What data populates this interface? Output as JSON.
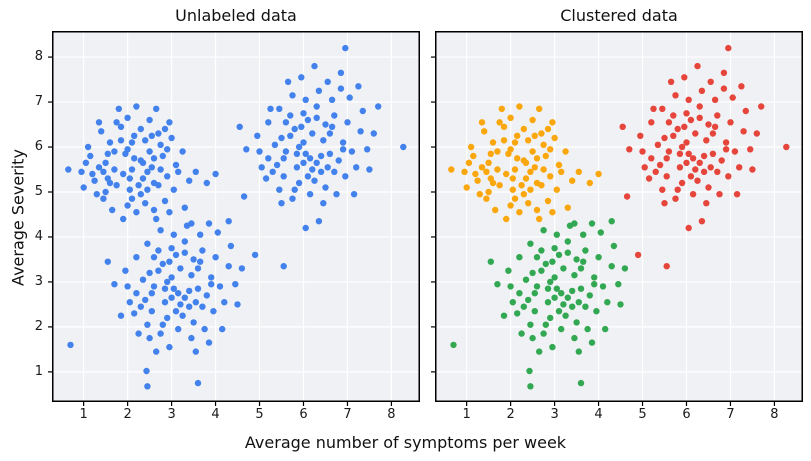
{
  "style": {
    "figure_bg": "#ffffff",
    "plot_bg": "#f0f1f4",
    "grid_color": "#ffffff",
    "spine_color": "#000000",
    "tick_color": "#000000",
    "text_color": "#1a1a1a",
    "unlabeled_point_color": "#4382EC",
    "cluster_point_colors": [
      "#FAA70E",
      "#33A852",
      "#E6453C"
    ]
  },
  "chart_data": {
    "type": "scatter",
    "xlabel": "Average number of symptoms per week",
    "ylabel": "Average Severity",
    "xlim": [
      0.28,
      8.65
    ],
    "ylim": [
      0.33,
      8.58
    ],
    "x_ticks": [
      1,
      2,
      3,
      4,
      5,
      6,
      7,
      8
    ],
    "y_ticks": [
      1,
      2,
      3,
      4,
      5,
      6,
      7,
      8
    ],
    "grid": true,
    "legend": "none",
    "note": "Both panels plot the same 260 points; left panel in a single blue, right panel colored by cluster index.",
    "panels": [
      {
        "title": "Unlabeled data",
        "coloring": "single",
        "color": "#4382EC",
        "y_tick_labels_shown": true
      },
      {
        "title": "Clustered data",
        "coloring": "by_cluster",
        "y_tick_labels_shown": false
      }
    ],
    "clusters": [
      {
        "name": "cluster-yellow",
        "color": "#FAA70E",
        "center": [
          2.2,
          5.5
        ],
        "count": 83
      },
      {
        "name": "cluster-green",
        "color": "#33A852",
        "center": [
          3.1,
          2.9
        ],
        "count": 87
      },
      {
        "name": "cluster-red",
        "color": "#E6453C",
        "center": [
          6.1,
          6.0
        ],
        "count": 90
      }
    ],
    "points_format": "[x, y, cluster_index]",
    "points": [
      [
        1.9,
        5.4,
        0
      ],
      [
        2.3,
        5.7,
        0
      ],
      [
        2.6,
        5.2,
        0
      ],
      [
        1.7,
        5.9,
        0
      ],
      [
        2.1,
        6.1,
        0
      ],
      [
        2.45,
        5.45,
        0
      ],
      [
        1.55,
        5.3,
        0
      ],
      [
        2.8,
        5.8,
        0
      ],
      [
        2.05,
        5.05,
        0
      ],
      [
        1.35,
        5.55,
        0
      ],
      [
        2.3,
        4.95,
        0
      ],
      [
        2.7,
        6.3,
        0
      ],
      [
        1.85,
        6.45,
        0
      ],
      [
        2.5,
        6.6,
        0
      ],
      [
        1.6,
        6.1,
        0
      ],
      [
        2.15,
        5.75,
        0
      ],
      [
        2.9,
        5.35,
        0
      ],
      [
        3.1,
        5.6,
        0
      ],
      [
        1.45,
        4.85,
        0
      ],
      [
        2.0,
        4.7,
        0
      ],
      [
        2.35,
        5.3,
        0
      ],
      [
        2.6,
        4.6,
        0
      ],
      [
        1.75,
        5.15,
        0
      ],
      [
        1.2,
        5.4,
        0
      ],
      [
        0.95,
        5.45,
        0
      ],
      [
        0.65,
        5.5,
        0
      ],
      [
        1.1,
        6.0,
        0
      ],
      [
        1.5,
        5.65,
        0
      ],
      [
        2.2,
        6.9,
        0
      ],
      [
        2.4,
        6.15,
        0
      ],
      [
        2.75,
        6.05,
        0
      ],
      [
        3.0,
        6.2,
        0
      ],
      [
        3.25,
        5.9,
        0
      ],
      [
        2.85,
        4.8,
        0
      ],
      [
        3.4,
        5.25,
        0
      ],
      [
        2.1,
        5.5,
        0
      ],
      [
        1.95,
        5.85,
        0
      ],
      [
        2.55,
        5.55,
        0
      ],
      [
        2.3,
        6.4,
        0
      ],
      [
        1.65,
        4.6,
        0
      ],
      [
        1.3,
        4.95,
        0
      ],
      [
        1.0,
        5.1,
        0
      ],
      [
        2.0,
        6.65,
        0
      ],
      [
        1.8,
        6.85,
        0
      ],
      [
        2.65,
        6.85,
        0
      ],
      [
        2.95,
        6.55,
        0
      ],
      [
        1.4,
        6.35,
        0
      ],
      [
        1.15,
        5.8,
        0
      ],
      [
        2.45,
        5.05,
        0
      ],
      [
        2.2,
        4.55,
        0
      ],
      [
        1.9,
        4.4,
        0
      ],
      [
        2.75,
        5.5,
        0
      ],
      [
        3.05,
        5.05,
        0
      ],
      [
        3.3,
        4.65,
        0
      ],
      [
        3.55,
        5.45,
        0
      ],
      [
        3.8,
        5.2,
        0
      ],
      [
        2.5,
        5.9,
        0
      ],
      [
        2.05,
        5.3,
        0
      ],
      [
        1.7,
        5.5,
        0
      ],
      [
        1.5,
        5.0,
        0
      ],
      [
        2.35,
        5.65,
        0
      ],
      [
        2.6,
        5.75,
        0
      ],
      [
        2.9,
        5.95,
        0
      ],
      [
        2.15,
        6.25,
        0
      ],
      [
        1.85,
        6.15,
        0
      ],
      [
        1.55,
        5.85,
        0
      ],
      [
        1.25,
        5.25,
        0
      ],
      [
        2.7,
        5.15,
        0
      ],
      [
        3.15,
        5.45,
        0
      ],
      [
        2.4,
        4.75,
        0
      ],
      [
        2.0,
        5.95,
        0
      ],
      [
        1.75,
        6.55,
        0
      ],
      [
        2.55,
        6.25,
        0
      ],
      [
        2.85,
        6.4,
        0
      ],
      [
        2.25,
        5.15,
        0
      ],
      [
        1.45,
        5.45,
        0
      ],
      [
        1.05,
        5.65,
        0
      ],
      [
        2.1,
        4.85,
        0
      ],
      [
        2.95,
        4.55,
        0
      ],
      [
        4.0,
        5.4,
        0
      ],
      [
        2.65,
        4.4,
        0
      ],
      [
        1.35,
        6.55,
        0
      ],
      [
        1.6,
        5.2,
        0
      ],
      [
        3.0,
        3.1,
        1
      ],
      [
        3.4,
        2.8,
        1
      ],
      [
        2.8,
        3.4,
        1
      ],
      [
        3.6,
        3.3,
        1
      ],
      [
        3.2,
        2.5,
        1
      ],
      [
        2.6,
        2.9,
        1
      ],
      [
        3.8,
        2.7,
        1
      ],
      [
        3.1,
        3.6,
        1
      ],
      [
        2.9,
        2.2,
        1
      ],
      [
        3.5,
        2.1,
        1
      ],
      [
        2.4,
        2.6,
        1
      ],
      [
        3.3,
        3.9,
        1
      ],
      [
        3.7,
        3.7,
        1
      ],
      [
        2.7,
        3.7,
        1
      ],
      [
        2.5,
        3.2,
        1
      ],
      [
        3.9,
        3.1,
        1
      ],
      [
        4.1,
        2.9,
        1
      ],
      [
        3.05,
        2.85,
        1
      ],
      [
        3.45,
        3.15,
        1
      ],
      [
        2.95,
        3.45,
        1
      ],
      [
        2.2,
        2.75,
        1
      ],
      [
        2.35,
        3.05,
        1
      ],
      [
        4.3,
        3.35,
        1
      ],
      [
        4.0,
        3.55,
        1
      ],
      [
        3.55,
        2.55,
        1
      ],
      [
        3.25,
        2.25,
        1
      ],
      [
        2.85,
        2.55,
        1
      ],
      [
        2.55,
        2.35,
        1
      ],
      [
        2.15,
        2.3,
        1
      ],
      [
        3.15,
        1.95,
        1
      ],
      [
        3.45,
        1.75,
        1
      ],
      [
        3.75,
        1.95,
        1
      ],
      [
        2.75,
        1.85,
        1
      ],
      [
        2.45,
        2.05,
        1
      ],
      [
        3.95,
        2.35,
        1
      ],
      [
        4.2,
        2.55,
        1
      ],
      [
        4.45,
        2.95,
        1
      ],
      [
        3.65,
        4.05,
        1
      ],
      [
        3.35,
        4.25,
        1
      ],
      [
        3.05,
        4.05,
        1
      ],
      [
        2.75,
        4.15,
        1
      ],
      [
        2.45,
        3.85,
        1
      ],
      [
        2.2,
        3.55,
        1
      ],
      [
        1.95,
        3.25,
        1
      ],
      [
        1.7,
        2.95,
        1
      ],
      [
        1.55,
        3.45,
        1
      ],
      [
        3.85,
        4.3,
        1
      ],
      [
        4.05,
        4.1,
        1
      ],
      [
        4.35,
        3.8,
        1
      ],
      [
        4.6,
        3.3,
        1
      ],
      [
        3.2,
        3.3,
        1
      ],
      [
        3.5,
        3.5,
        1
      ],
      [
        2.9,
        3.0,
        1
      ],
      [
        2.6,
        3.55,
        1
      ],
      [
        3.0,
        2.65,
        1
      ],
      [
        3.3,
        2.65,
        1
      ],
      [
        3.6,
        2.85,
        1
      ],
      [
        3.1,
        2.35,
        1
      ],
      [
        2.8,
        2.05,
        1
      ],
      [
        2.5,
        1.75,
        1
      ],
      [
        2.45,
        0.68,
        1
      ],
      [
        3.6,
        0.75,
        1
      ],
      [
        2.43,
        1.02,
        1
      ],
      [
        2.95,
        1.55,
        1
      ],
      [
        3.55,
        1.45,
        1
      ],
      [
        3.85,
        1.65,
        1
      ],
      [
        2.65,
        1.45,
        1
      ],
      [
        2.25,
        1.85,
        1
      ],
      [
        2.05,
        2.55,
        1
      ],
      [
        1.85,
        2.25,
        1
      ],
      [
        4.15,
        1.95,
        1
      ],
      [
        3.9,
        2.95,
        1
      ],
      [
        3.7,
        2.45,
        1
      ],
      [
        3.4,
        2.45,
        1
      ],
      [
        3.15,
        2.75,
        1
      ],
      [
        2.85,
        2.85,
        1
      ],
      [
        2.55,
        2.75,
        1
      ],
      [
        2.3,
        2.45,
        1
      ],
      [
        0.7,
        1.6,
        1
      ],
      [
        3.0,
        3.75,
        1
      ],
      [
        3.3,
        3.65,
        1
      ],
      [
        3.65,
        3.45,
        1
      ],
      [
        4.5,
        2.5,
        1
      ],
      [
        2.0,
        2.9,
        1
      ],
      [
        2.7,
        3.25,
        1
      ],
      [
        3.45,
        4.3,
        1
      ],
      [
        4.3,
        4.35,
        1
      ],
      [
        6.0,
        6.1,
        2
      ],
      [
        6.4,
        5.8,
        2
      ],
      [
        5.8,
        6.4,
        2
      ],
      [
        6.6,
        6.3,
        2
      ],
      [
        6.2,
        5.5,
        2
      ],
      [
        5.6,
        5.9,
        2
      ],
      [
        6.8,
        5.7,
        2
      ],
      [
        6.1,
        6.6,
        2
      ],
      [
        5.9,
        5.2,
        2
      ],
      [
        6.5,
        5.1,
        2
      ],
      [
        5.4,
        5.6,
        2
      ],
      [
        6.3,
        6.9,
        2
      ],
      [
        6.7,
        6.7,
        2
      ],
      [
        5.7,
        6.7,
        2
      ],
      [
        5.5,
        6.2,
        2
      ],
      [
        6.9,
        6.1,
        2
      ],
      [
        7.1,
        5.9,
        2
      ],
      [
        6.05,
        5.85,
        2
      ],
      [
        6.45,
        6.15,
        2
      ],
      [
        5.95,
        6.45,
        2
      ],
      [
        5.2,
        5.75,
        2
      ],
      [
        5.35,
        6.05,
        2
      ],
      [
        7.3,
        6.35,
        2
      ],
      [
        7.0,
        6.55,
        2
      ],
      [
        6.55,
        5.55,
        2
      ],
      [
        6.25,
        5.25,
        2
      ],
      [
        5.85,
        5.55,
        2
      ],
      [
        5.55,
        5.35,
        2
      ],
      [
        5.15,
        5.3,
        2
      ],
      [
        6.15,
        4.95,
        2
      ],
      [
        6.45,
        4.75,
        2
      ],
      [
        6.75,
        4.95,
        2
      ],
      [
        5.75,
        4.85,
        2
      ],
      [
        5.45,
        5.05,
        2
      ],
      [
        6.95,
        5.35,
        2
      ],
      [
        7.2,
        5.55,
        2
      ],
      [
        7.45,
        5.95,
        2
      ],
      [
        6.65,
        7.05,
        2
      ],
      [
        6.35,
        7.25,
        2
      ],
      [
        6.05,
        7.05,
        2
      ],
      [
        5.75,
        7.15,
        2
      ],
      [
        5.45,
        6.85,
        2
      ],
      [
        5.2,
        6.55,
        2
      ],
      [
        4.95,
        6.25,
        2
      ],
      [
        4.7,
        5.95,
        2
      ],
      [
        4.55,
        6.45,
        2
      ],
      [
        6.85,
        7.3,
        2
      ],
      [
        7.05,
        7.1,
        2
      ],
      [
        7.35,
        6.8,
        2
      ],
      [
        7.6,
        6.3,
        2
      ],
      [
        6.2,
        6.3,
        2
      ],
      [
        6.5,
        6.5,
        2
      ],
      [
        5.9,
        6.0,
        2
      ],
      [
        5.6,
        6.55,
        2
      ],
      [
        6.0,
        5.65,
        2
      ],
      [
        6.3,
        5.65,
        2
      ],
      [
        6.6,
        5.85,
        2
      ],
      [
        6.1,
        5.35,
        2
      ],
      [
        5.8,
        5.05,
        2
      ],
      [
        5.5,
        4.75,
        2
      ],
      [
        5.55,
        3.35,
        2
      ],
      [
        6.95,
        8.2,
        2
      ],
      [
        6.25,
        7.8,
        2
      ],
      [
        5.95,
        7.55,
        2
      ],
      [
        6.55,
        7.45,
        2
      ],
      [
        6.85,
        7.65,
        2
      ],
      [
        5.65,
        7.45,
        2
      ],
      [
        5.25,
        6.85,
        2
      ],
      [
        5.05,
        5.55,
        2
      ],
      [
        4.65,
        4.9,
        2
      ],
      [
        7.15,
        4.95,
        2
      ],
      [
        6.9,
        5.95,
        2
      ],
      [
        6.7,
        5.45,
        2
      ],
      [
        6.4,
        5.45,
        2
      ],
      [
        6.15,
        5.75,
        2
      ],
      [
        5.85,
        5.85,
        2
      ],
      [
        5.55,
        5.75,
        2
      ],
      [
        5.3,
        5.45,
        2
      ],
      [
        8.27,
        6.0,
        2
      ],
      [
        6.0,
        6.75,
        2
      ],
      [
        6.3,
        6.65,
        2
      ],
      [
        6.65,
        6.45,
        2
      ],
      [
        7.5,
        5.5,
        2
      ],
      [
        5.0,
        5.9,
        2
      ],
      [
        5.7,
        6.25,
        2
      ],
      [
        7.25,
        7.35,
        2
      ],
      [
        7.7,
        6.9,
        2
      ],
      [
        4.9,
        3.6,
        2
      ],
      [
        6.35,
        4.35,
        2
      ],
      [
        6.05,
        4.2,
        2
      ]
    ]
  }
}
